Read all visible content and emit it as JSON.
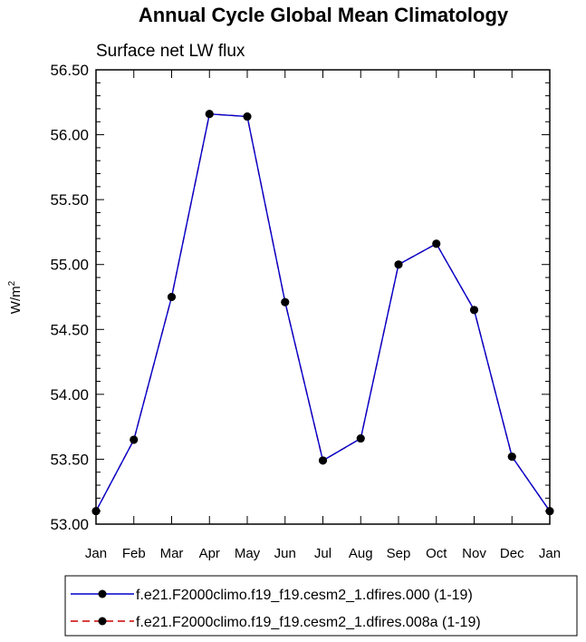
{
  "chart_data": {
    "type": "line",
    "title": "Annual Cycle Global Mean Climatology",
    "subtitle": "Surface net LW flux",
    "xlabel": "",
    "ylabel": "W/m",
    "ylabel_sup": "2",
    "categories": [
      "Jan",
      "Feb",
      "Mar",
      "Apr",
      "May",
      "Jun",
      "Jul",
      "Aug",
      "Sep",
      "Oct",
      "Nov",
      "Dec",
      "Jan"
    ],
    "ylim": [
      53.0,
      56.5
    ],
    "yticks": [
      53.0,
      53.5,
      54.0,
      54.5,
      55.0,
      55.5,
      56.0,
      56.5
    ],
    "ytick_labels": [
      "53.00",
      "53.50",
      "54.00",
      "54.50",
      "55.00",
      "55.50",
      "56.00",
      "56.50"
    ],
    "grid": false,
    "legend_placement": "bottom",
    "series": [
      {
        "name": "f.e21.F2000climo.f19_f19.cesm2_1.dfires.000 (1-19)",
        "color": "#0000cc",
        "style": "solid",
        "marker": "circle",
        "values": [
          53.1,
          53.65,
          54.75,
          56.16,
          56.14,
          54.71,
          53.49,
          53.66,
          55.0,
          55.16,
          54.65,
          53.52,
          53.1
        ]
      },
      {
        "name": "f.e21.F2000climo.f19_f19.cesm2_1.dfires.008a (1-19)",
        "color": "#cc0000",
        "style": "dashed",
        "marker": "circle",
        "values": [
          53.1,
          53.65,
          54.75,
          56.16,
          56.14,
          54.71,
          53.49,
          53.66,
          55.0,
          55.16,
          54.65,
          53.52,
          53.1
        ]
      }
    ]
  }
}
